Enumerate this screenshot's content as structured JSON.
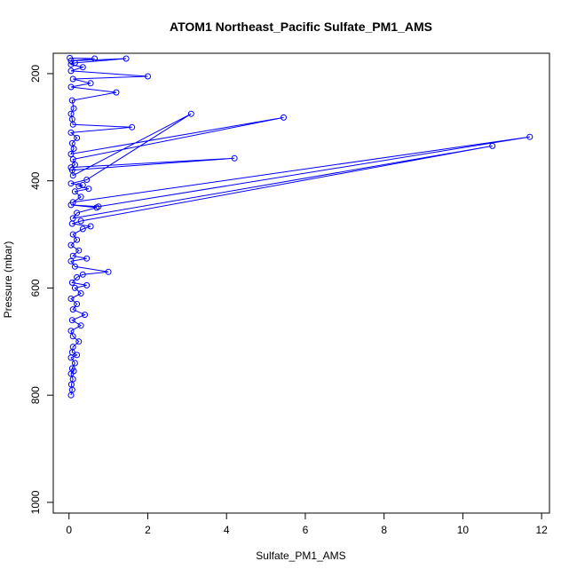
{
  "chart_data": {
    "type": "line",
    "title": "ATOM1 Northeast_Pacific Sulfate_PM1_AMS",
    "xlabel": "Sulfate_PM1_AMS",
    "ylabel": "Pressure (mbar)",
    "xlim": [
      -0.4,
      12.2
    ],
    "ylim": [
      1020,
      162
    ],
    "y_reversed": true,
    "x_ticks": [
      0,
      2,
      4,
      6,
      8,
      10,
      12
    ],
    "y_ticks": [
      200,
      400,
      600,
      800,
      1000
    ],
    "grid": false,
    "marker": "open-circle",
    "series": [
      {
        "color": "#0000ff",
        "points": [
          [
            0.05,
            800
          ],
          [
            0.08,
            790
          ],
          [
            0.06,
            780
          ],
          [
            0.1,
            770
          ],
          [
            0.05,
            760
          ],
          [
            0.12,
            755
          ],
          [
            0.08,
            750
          ],
          [
            0.15,
            740
          ],
          [
            0.05,
            730
          ],
          [
            0.2,
            725
          ],
          [
            0.08,
            720
          ],
          [
            0.1,
            710
          ],
          [
            0.25,
            700
          ],
          [
            0.1,
            690
          ],
          [
            0.05,
            680
          ],
          [
            0.3,
            670
          ],
          [
            0.08,
            660
          ],
          [
            0.4,
            650
          ],
          [
            0.1,
            640
          ],
          [
            0.2,
            630
          ],
          [
            0.05,
            620
          ],
          [
            0.3,
            610
          ],
          [
            0.15,
            600
          ],
          [
            0.45,
            595
          ],
          [
            0.08,
            590
          ],
          [
            0.2,
            580
          ],
          [
            0.35,
            575
          ],
          [
            1.0,
            570
          ],
          [
            0.15,
            560
          ],
          [
            0.05,
            550
          ],
          [
            0.45,
            545
          ],
          [
            0.1,
            540
          ],
          [
            0.25,
            530
          ],
          [
            0.05,
            520
          ],
          [
            0.2,
            510
          ],
          [
            0.1,
            500
          ],
          [
            0.35,
            490
          ],
          [
            0.55,
            485
          ],
          [
            0.08,
            480
          ],
          [
            0.3,
            475
          ],
          [
            10.75,
            335
          ],
          [
            0.1,
            470
          ],
          [
            0.2,
            460
          ],
          [
            0.7,
            450
          ],
          [
            0.05,
            445
          ],
          [
            0.75,
            448
          ],
          [
            11.7,
            318
          ],
          [
            0.1,
            440
          ],
          [
            0.3,
            430
          ],
          [
            0.15,
            420
          ],
          [
            0.5,
            415
          ],
          [
            0.25,
            410
          ],
          [
            0.35,
            408
          ],
          [
            0.05,
            405
          ],
          [
            0.45,
            398
          ],
          [
            3.1,
            275
          ],
          [
            0.1,
            390
          ],
          [
            0.08,
            380
          ],
          [
            4.2,
            358
          ],
          [
            0.05,
            375
          ],
          [
            0.15,
            370
          ],
          [
            0.1,
            360
          ],
          [
            5.45,
            282
          ],
          [
            0.05,
            350
          ],
          [
            0.12,
            340
          ],
          [
            0.08,
            330
          ],
          [
            0.2,
            320
          ],
          [
            0.05,
            310
          ],
          [
            1.6,
            300
          ],
          [
            0.1,
            295
          ],
          [
            0.08,
            285
          ],
          [
            0.05,
            275
          ],
          [
            0.12,
            265
          ],
          [
            0.08,
            250
          ],
          [
            1.2,
            235
          ],
          [
            0.05,
            225
          ],
          [
            0.55,
            218
          ],
          [
            0.1,
            210
          ],
          [
            2.0,
            205
          ],
          [
            0.05,
            195
          ],
          [
            0.35,
            188
          ],
          [
            0.05,
            183
          ],
          [
            0.15,
            180
          ],
          [
            1.45,
            172
          ],
          [
            0.05,
            176
          ],
          [
            0.65,
            172
          ],
          [
            0.02,
            171
          ]
        ]
      }
    ]
  }
}
